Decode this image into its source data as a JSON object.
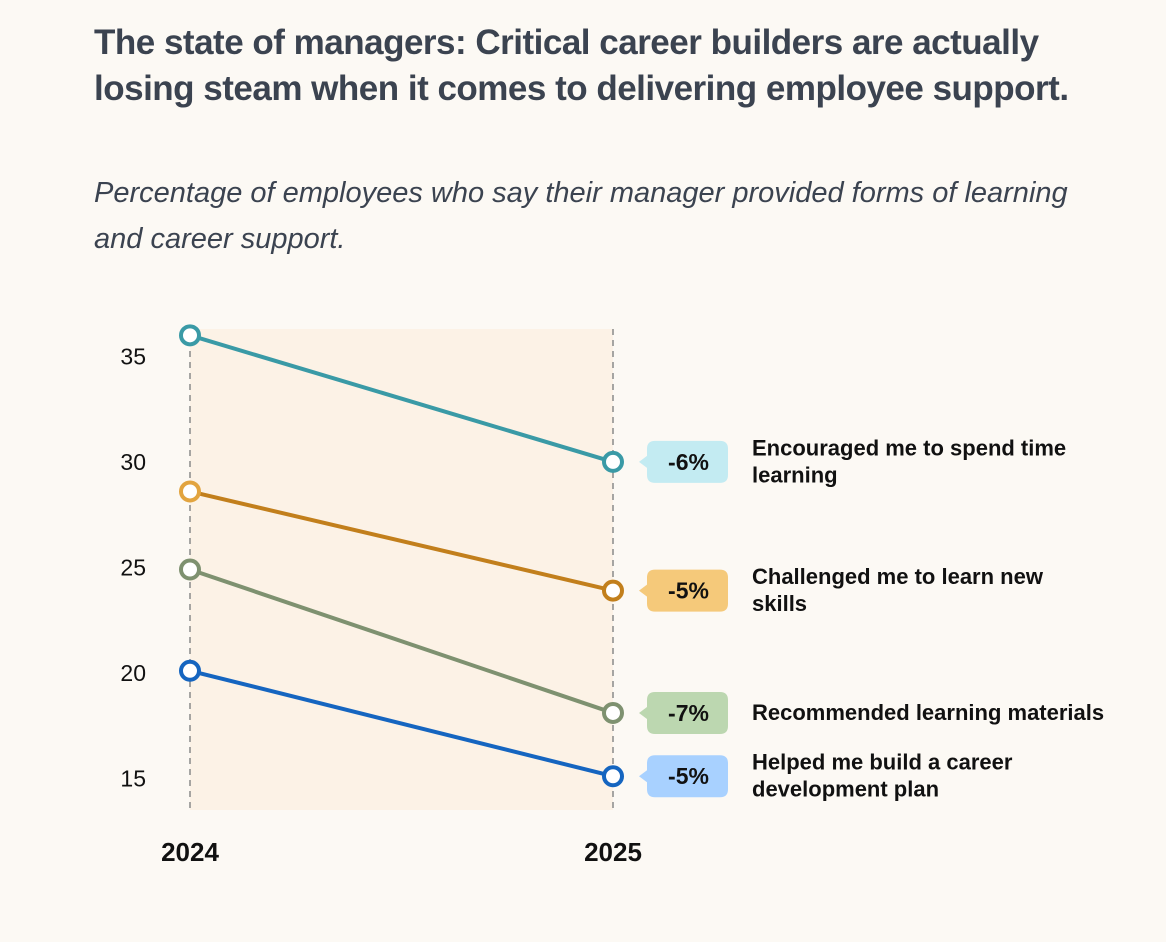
{
  "title": "The state of managers: Critical career builders are actually losing steam when it comes to delivering employee support.",
  "subtitle": "Percentage of employees who say their manager provided forms of learning and career support.",
  "chart_data": {
    "type": "line",
    "x": [
      "2024",
      "2025"
    ],
    "yticks": [
      35,
      30,
      25,
      20,
      15
    ],
    "ylim": [
      13.5,
      36.3
    ],
    "grid": false,
    "series": [
      {
        "name": "Encouraged me to spend time learning",
        "label_lines": [
          "Encouraged me to spend time",
          "learning"
        ],
        "values": [
          36,
          30
        ],
        "change": "-6%",
        "color": "#3a9aa6",
        "badge_color": "#c3ebf2"
      },
      {
        "name": "Challenged me to learn new skills",
        "label_lines": [
          "Challenged me to learn new",
          "skills"
        ],
        "values": [
          28.6,
          23.9
        ],
        "change": "-5%",
        "color": "#c27f1c",
        "start_color": "#e2a43f",
        "badge_color": "#f5c97a"
      },
      {
        "name": "Recommended learning materials",
        "label_lines": [
          "Recommended learning materials"
        ],
        "values": [
          24.9,
          18.1
        ],
        "change": "-7%",
        "color": "#7e9170",
        "badge_color": "#bcd7b0"
      },
      {
        "name": "Helped me build a career development plan",
        "label_lines": [
          "Helped me build a career",
          "development plan"
        ],
        "values": [
          20.1,
          15.1
        ],
        "change": "-5%",
        "color": "#1565c0",
        "badge_color": "#a8d1ff"
      }
    ]
  }
}
